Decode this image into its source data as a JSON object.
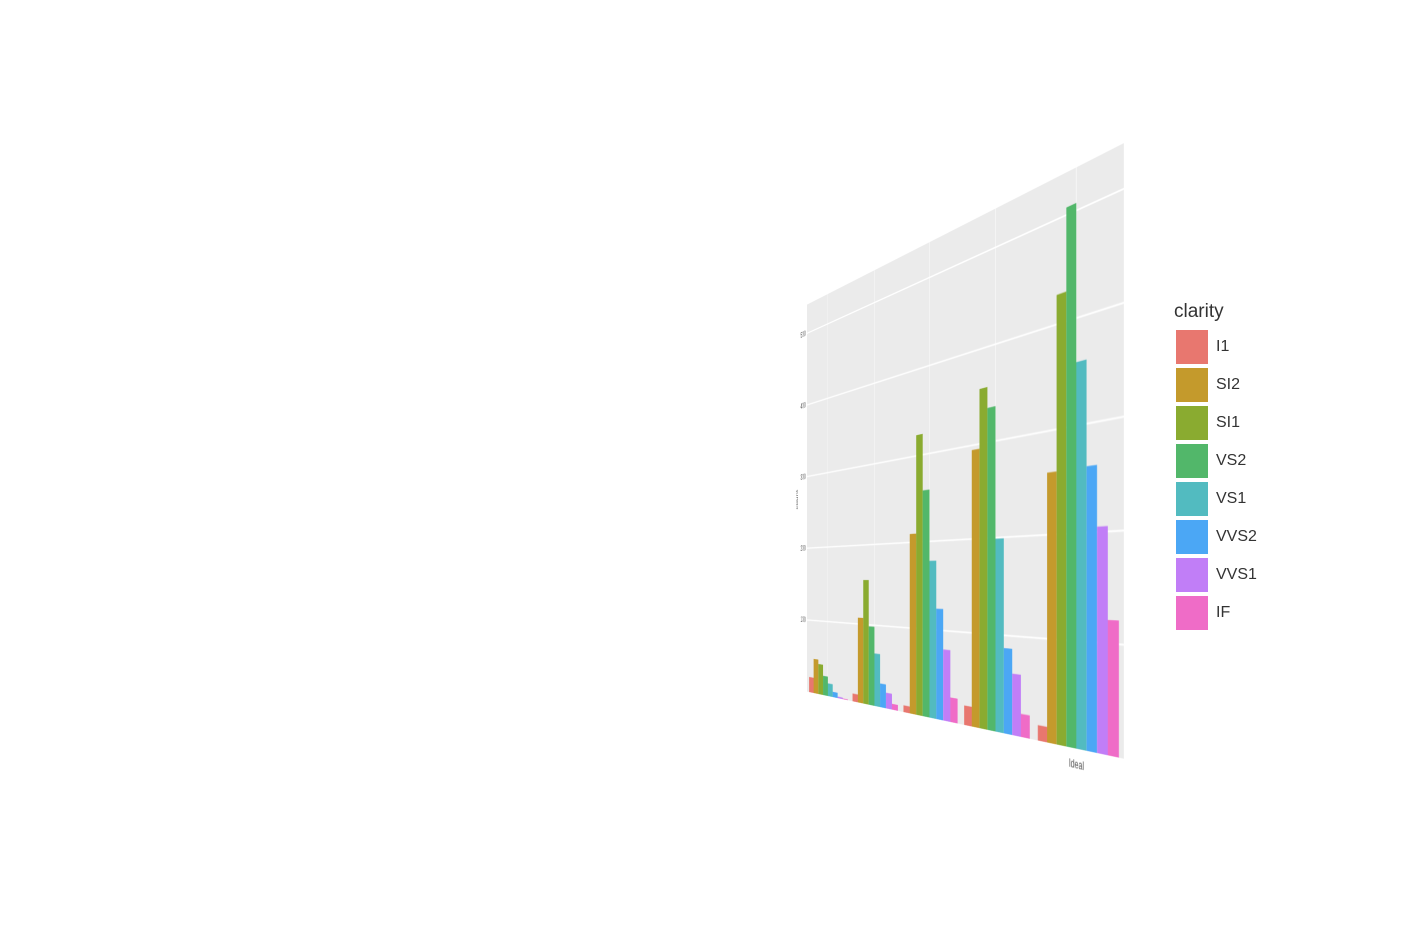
{
  "chart_data": {
    "type": "bar",
    "y_label": "count",
    "legend_title": "clarity",
    "categories": [
      null,
      null,
      null,
      null,
      "Ideal"
    ],
    "series": [
      {
        "name": "I1",
        "color": "#e8776f",
        "values": [
          21,
          10,
          8,
          21,
          15
        ]
      },
      {
        "name": "SI2",
        "color": "#c49a2c",
        "values": [
          47,
          108,
          210,
          295,
          260
        ]
      },
      {
        "name": "SI1",
        "color": "#8aab30",
        "values": [
          41,
          156,
          324,
          358,
          428
        ]
      },
      {
        "name": "VS2",
        "color": "#52b76a",
        "values": [
          26,
          98,
          259,
          336,
          507
        ]
      },
      {
        "name": "VS1",
        "color": "#52bbc0",
        "values": [
          17,
          65,
          178,
          199,
          359
        ]
      },
      {
        "name": "VVS2",
        "color": "#4ba7f5",
        "values": [
          7,
          29,
          124,
          87,
          261
        ]
      },
      {
        "name": "VVS1",
        "color": "#c17ef7",
        "values": [
          2,
          19,
          79,
          62,
          205
        ]
      },
      {
        "name": "IF",
        "color": "#ef6cc7",
        "values": [
          1,
          7,
          27,
          23,
          121
        ]
      }
    ],
    "ylim": [
      0,
      540
    ],
    "yticks": [
      100,
      200,
      300,
      400,
      500
    ],
    "grid": true
  }
}
